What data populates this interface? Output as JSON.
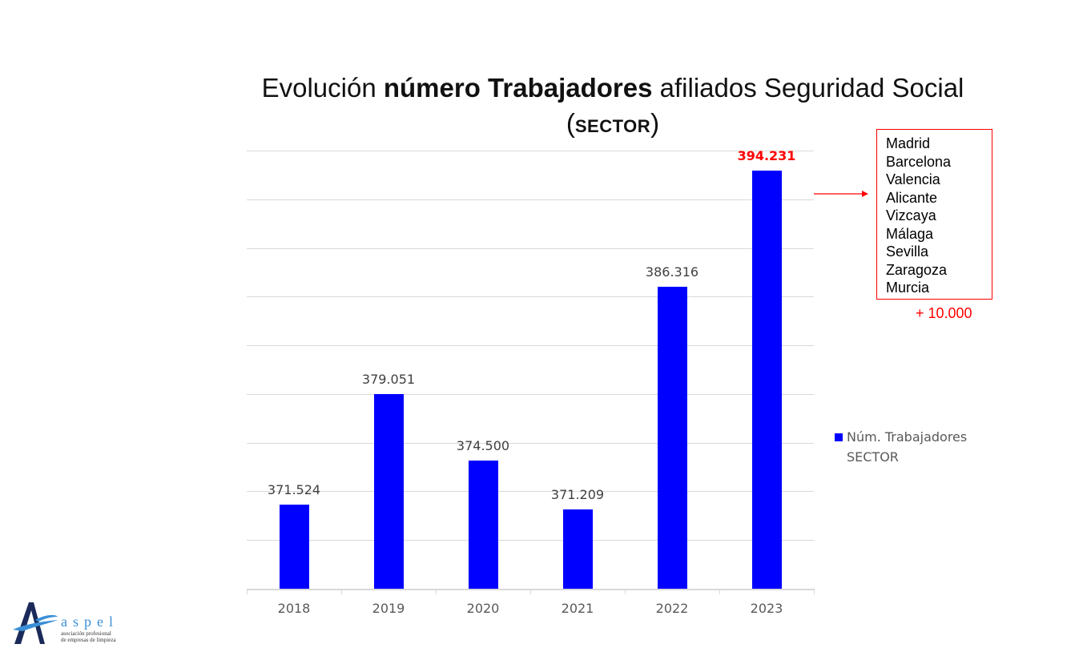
{
  "title": {
    "prefix": "Evolución ",
    "bold": "número Trabajadores",
    "suffix": " afiliados Seguridad Social",
    "sub_open": "(",
    "sub_text": "SECTOR",
    "sub_close": ")"
  },
  "chart_data": {
    "type": "bar",
    "title": "Evolución número Trabajadores afiliados Seguridad Social (SECTOR)",
    "categories": [
      "2018",
      "2019",
      "2020",
      "2021",
      "2022",
      "2023"
    ],
    "series": [
      {
        "name": "Núm. Trabajadores SECTOR",
        "values": [
          371524,
          379051,
          374500,
          371209,
          386316,
          394231
        ],
        "color": "#0000ff"
      }
    ],
    "value_labels": [
      "371.524",
      "379.051",
      "374.500",
      "371.209",
      "386.316",
      "394.231"
    ],
    "highlight": {
      "category": "2023",
      "label": "394.231",
      "color": "#ff0000"
    },
    "xlabel": "",
    "ylabel": "",
    "grid": true,
    "legend_position": "right",
    "axis_labels_visible": false
  },
  "annotation": {
    "cities": [
      "Madrid",
      "Barcelona",
      "Valencia",
      "Alicante",
      "Vizcaya",
      "Málaga",
      "Sevilla",
      "Zaragoza",
      "Murcia"
    ],
    "delta": "+ 10.000",
    "color": "#ff0000"
  },
  "legend": {
    "line1": "Núm. Trabajadores",
    "line2": "SECTOR"
  },
  "logo": {
    "name": "aspel",
    "line1": "asociación profesional",
    "line2": "de empresas de limpieza"
  }
}
